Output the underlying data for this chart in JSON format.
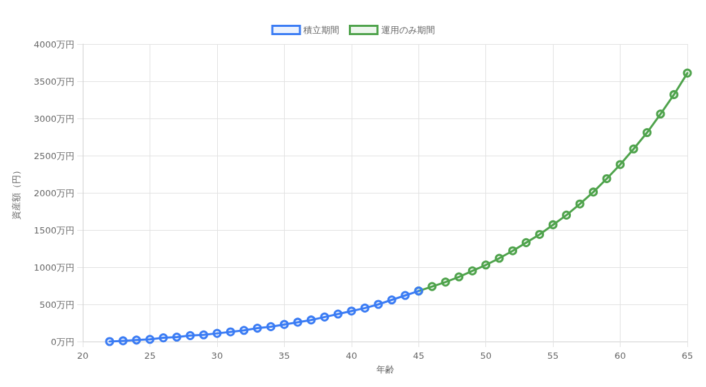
{
  "chart_data": {
    "type": "line",
    "xlabel": "年齢",
    "ylabel": "資産額（円）",
    "xlim": [
      20,
      65
    ],
    "xticks": [
      20,
      25,
      30,
      35,
      40,
      45,
      50,
      55,
      60,
      65
    ],
    "ylim": [
      0,
      4000
    ],
    "yticks": [
      {
        "value": 0,
        "label": "0万円"
      },
      {
        "value": 500,
        "label": "500万円"
      },
      {
        "value": 1000,
        "label": "1000万円"
      },
      {
        "value": 1500,
        "label": "1500万円"
      },
      {
        "value": 2000,
        "label": "2000万円"
      },
      {
        "value": 2500,
        "label": "2500万円"
      },
      {
        "value": 3000,
        "label": "3000万円"
      },
      {
        "value": 3500,
        "label": "3500万円"
      },
      {
        "value": 4000,
        "label": "4000万円"
      }
    ],
    "grid": true,
    "legend": "top",
    "marker": "circle",
    "line_style": "solid",
    "series": [
      {
        "name": "積立期間",
        "color": "#3b7cf4",
        "x": [
          22,
          23,
          24,
          25,
          26,
          27,
          28,
          29,
          30,
          31,
          32,
          33,
          34,
          35,
          36,
          37,
          38,
          39,
          40,
          41,
          42,
          43,
          44,
          45
        ],
        "values": [
          0,
          10,
          20,
          30,
          50,
          60,
          80,
          90,
          110,
          130,
          150,
          180,
          200,
          230,
          260,
          290,
          330,
          370,
          410,
          450,
          500,
          560,
          620,
          680
        ]
      },
      {
        "name": "運用のみ期間",
        "color": "#4fa34c",
        "x": [
          45,
          46,
          47,
          48,
          49,
          50,
          51,
          52,
          53,
          54,
          55,
          56,
          57,
          58,
          59,
          60,
          61,
          62,
          63,
          64,
          65
        ],
        "values": [
          680,
          740,
          800,
          870,
          950,
          1030,
          1120,
          1220,
          1330,
          1440,
          1570,
          1700,
          1850,
          2010,
          2190,
          2380,
          2590,
          2810,
          3060,
          3320,
          3610
        ]
      }
    ]
  }
}
